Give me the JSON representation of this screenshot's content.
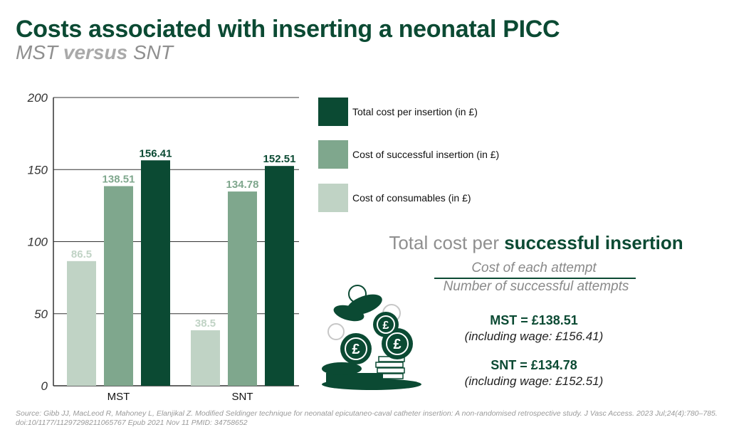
{
  "header": {
    "title": "Costs associated with inserting a neonatal PICC",
    "subtitle_a": "MST",
    "subtitle_vs": "versus",
    "subtitle_b": "SNT"
  },
  "chart_data": {
    "type": "bar",
    "categories": [
      "MST",
      "SNT"
    ],
    "series": [
      {
        "name": "Cost of consumables (in £)",
        "values": [
          86.5,
          38.5
        ],
        "color": "#c0d3c5",
        "label_color": "#c0d3c5"
      },
      {
        "name": "Cost of successful insertion (in £)",
        "values": [
          138.51,
          134.78
        ],
        "color": "#7fa78d",
        "label_color": "#7fa78d"
      },
      {
        "name": "Total cost per insertion (in £)",
        "values": [
          156.41,
          152.51
        ],
        "color": "#0b4a33",
        "label_color": "#0b4a33"
      }
    ],
    "value_labels": [
      [
        "86.5",
        "38.5"
      ],
      [
        "138.51",
        "134.78"
      ],
      [
        "156.41",
        "152.51"
      ]
    ],
    "ylim": [
      0,
      200
    ],
    "yticks": [
      0,
      50,
      100,
      150,
      200
    ],
    "ytick_labels": [
      "0",
      "50",
      "100",
      "150",
      "200"
    ],
    "grid": true,
    "legend_position": "right"
  },
  "legend": {
    "items": [
      {
        "label": "Total cost per insertion (in £)",
        "color": "#0b4a33"
      },
      {
        "label": "Cost of successful insertion (in £)",
        "color": "#7fa78d"
      },
      {
        "label": "Cost of consumables (in £)",
        "color": "#c0d3c5"
      }
    ]
  },
  "formula": {
    "title_part1": "Total cost per",
    "title_part2": "successful insertion",
    "numerator": "Cost of each attempt",
    "denominator": "Number of successful attempts"
  },
  "results": {
    "mst_main": "MST = £138.51",
    "mst_sub": "(including wage: £156.41)",
    "snt_main": "SNT = £134.78",
    "snt_sub": "(including wage: £152.51)"
  },
  "source": "Source: Gibb JJ, MacLeod R, Mahoney L, Elanjikal Z. Modified Seldinger technique for neonatal epicutaneo-caval catheter insertion: A non-randomised retrospective study. J Vasc Access. 2023 Jul;24(4):780–785. doi:10/1177/11297298211065767 Epub 2021 Nov 11 PMID: 34758652",
  "illustration": {
    "icon": "coin-pile-icon",
    "coin_symbol": "£"
  }
}
